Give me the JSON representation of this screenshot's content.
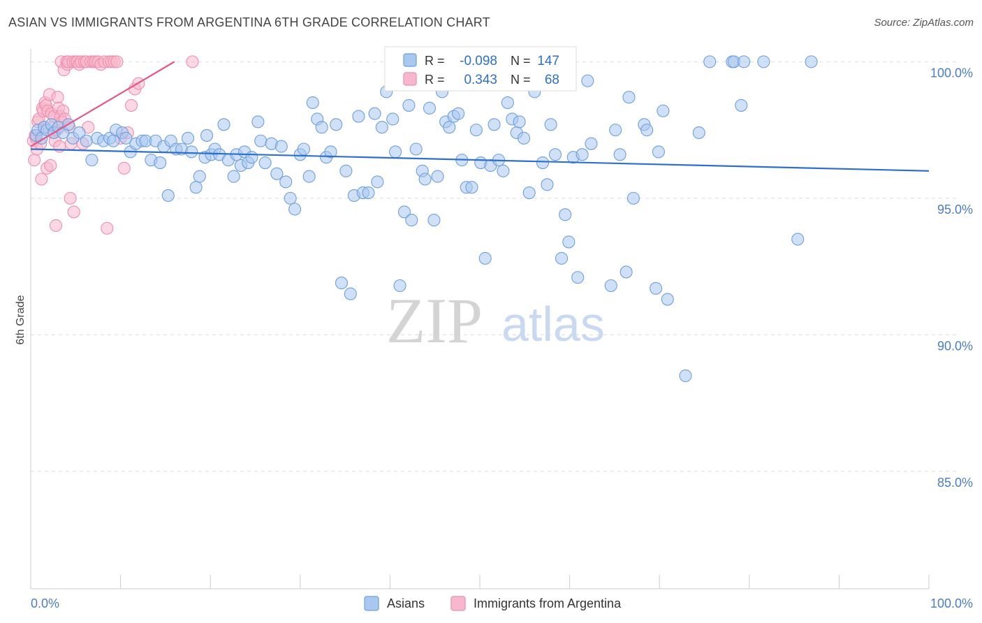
{
  "title": "ASIAN VS IMMIGRANTS FROM ARGENTINA 6TH GRADE CORRELATION CHART",
  "source": "Source: ZipAtlas.com",
  "watermark": {
    "zip": "ZIP",
    "atlas": "atlas"
  },
  "colors": {
    "asians_fill": "#a9c8f0",
    "asians_stroke": "#6e9fdc",
    "asians_line": "#2e6fcc",
    "argentina_fill": "#f7b8cc",
    "argentina_stroke": "#ee8eae",
    "argentina_line": "#e5578a",
    "axis_text": "#4a7cc9",
    "grid": "#dddddd"
  },
  "legend_box": {
    "row1": {
      "r_label": "R =",
      "r_value": "-0.098",
      "n_label": "N =",
      "n_value": "147"
    },
    "row2": {
      "r_label": "R =",
      "r_value": "0.343",
      "n_label": "N =",
      "n_value": "68"
    }
  },
  "chart_data": {
    "type": "scatter",
    "title": "ASIAN VS IMMIGRANTS FROM ARGENTINA 6TH GRADE CORRELATION CHART",
    "xlabel": "",
    "ylabel": "6th Grade",
    "xlim": [
      0,
      100
    ],
    "ylim": [
      80.7,
      100.7
    ],
    "x_tick_labels": [
      "0.0%",
      "100.0%"
    ],
    "y_ticks": [
      85,
      90,
      95,
      100
    ],
    "y_tick_labels": [
      "85.0%",
      "90.0%",
      "95.0%",
      "100.0%"
    ],
    "grid": true,
    "legend_position": "bottom",
    "series": [
      {
        "name": "Asians",
        "trend": {
          "x": [
            0,
            100
          ],
          "y": [
            96.8,
            96.0
          ]
        },
        "points": [
          [
            0.6,
            97.3
          ],
          [
            0.8,
            97.5
          ],
          [
            1.2,
            97.2
          ],
          [
            1.5,
            97.6
          ],
          [
            1.8,
            97.5
          ],
          [
            2.3,
            97.7
          ],
          [
            2.6,
            97.4
          ],
          [
            3.1,
            97.6
          ],
          [
            3.6,
            97.4
          ],
          [
            4.2,
            97.7
          ],
          [
            4.7,
            97.2
          ],
          [
            5.4,
            97.4
          ],
          [
            6.2,
            97.1
          ],
          [
            6.8,
            96.4
          ],
          [
            7.4,
            97.2
          ],
          [
            8.1,
            97.1
          ],
          [
            8.8,
            97.2
          ],
          [
            9.2,
            97.1
          ],
          [
            9.5,
            97.5
          ],
          [
            10.2,
            97.4
          ],
          [
            10.6,
            97.2
          ],
          [
            11.1,
            96.7
          ],
          [
            11.7,
            97.0
          ],
          [
            12.4,
            97.1
          ],
          [
            12.8,
            97.1
          ],
          [
            13.4,
            96.4
          ],
          [
            13.9,
            97.1
          ],
          [
            14.4,
            96.3
          ],
          [
            14.8,
            96.9
          ],
          [
            15.3,
            95.1
          ],
          [
            15.6,
            97.1
          ],
          [
            16.2,
            96.8
          ],
          [
            16.8,
            96.8
          ],
          [
            17.5,
            97.2
          ],
          [
            17.9,
            96.7
          ],
          [
            18.4,
            95.4
          ],
          [
            18.8,
            95.8
          ],
          [
            19.4,
            96.5
          ],
          [
            19.6,
            97.3
          ],
          [
            20.1,
            96.6
          ],
          [
            20.5,
            96.8
          ],
          [
            21.0,
            96.6
          ],
          [
            21.5,
            97.7
          ],
          [
            22.0,
            96.4
          ],
          [
            22.6,
            95.8
          ],
          [
            22.9,
            96.6
          ],
          [
            23.4,
            96.2
          ],
          [
            23.8,
            96.7
          ],
          [
            24.2,
            96.3
          ],
          [
            24.6,
            96.5
          ],
          [
            25.3,
            97.8
          ],
          [
            25.6,
            97.1
          ],
          [
            26.1,
            96.3
          ],
          [
            26.8,
            97.0
          ],
          [
            27.4,
            95.9
          ],
          [
            27.9,
            96.9
          ],
          [
            28.4,
            95.6
          ],
          [
            28.9,
            95.0
          ],
          [
            29.4,
            94.6
          ],
          [
            30.0,
            96.6
          ],
          [
            30.4,
            96.8
          ],
          [
            31.0,
            95.8
          ],
          [
            31.4,
            98.5
          ],
          [
            31.9,
            97.9
          ],
          [
            32.4,
            97.6
          ],
          [
            32.9,
            96.5
          ],
          [
            33.4,
            96.7
          ],
          [
            34.0,
            97.7
          ],
          [
            34.6,
            91.9
          ],
          [
            35.1,
            96.0
          ],
          [
            35.6,
            91.5
          ],
          [
            36.0,
            95.1
          ],
          [
            36.5,
            98.0
          ],
          [
            37.0,
            95.2
          ],
          [
            37.6,
            95.2
          ],
          [
            38.3,
            98.1
          ],
          [
            38.6,
            95.6
          ],
          [
            39.1,
            97.6
          ],
          [
            39.6,
            98.9
          ],
          [
            40.3,
            97.9
          ],
          [
            40.6,
            96.7
          ],
          [
            41.1,
            91.8
          ],
          [
            41.6,
            94.5
          ],
          [
            42.1,
            98.4
          ],
          [
            42.4,
            94.2
          ],
          [
            42.9,
            96.8
          ],
          [
            43.6,
            96.0
          ],
          [
            43.9,
            95.7
          ],
          [
            44.4,
            98.3
          ],
          [
            44.9,
            94.2
          ],
          [
            45.3,
            95.8
          ],
          [
            45.8,
            98.9
          ],
          [
            46.2,
            97.8
          ],
          [
            46.6,
            97.6
          ],
          [
            47.1,
            98.0
          ],
          [
            47.6,
            98.1
          ],
          [
            48.0,
            96.4
          ],
          [
            48.5,
            95.4
          ],
          [
            49.1,
            95.4
          ],
          [
            49.6,
            97.5
          ],
          [
            50.1,
            96.3
          ],
          [
            50.6,
            92.8
          ],
          [
            51.2,
            96.2
          ],
          [
            51.6,
            97.7
          ],
          [
            52.1,
            96.4
          ],
          [
            52.6,
            96.0
          ],
          [
            53.1,
            98.5
          ],
          [
            53.6,
            97.9
          ],
          [
            54.1,
            97.4
          ],
          [
            54.4,
            97.8
          ],
          [
            54.9,
            97.2
          ],
          [
            55.5,
            95.2
          ],
          [
            56.1,
            98.9
          ],
          [
            57.0,
            96.3
          ],
          [
            57.5,
            95.5
          ],
          [
            57.9,
            97.7
          ],
          [
            58.4,
            96.6
          ],
          [
            59.1,
            92.8
          ],
          [
            59.5,
            94.4
          ],
          [
            59.9,
            93.4
          ],
          [
            60.4,
            96.5
          ],
          [
            60.9,
            92.1
          ],
          [
            61.4,
            96.6
          ],
          [
            62.0,
            99.3
          ],
          [
            62.4,
            97.0
          ],
          [
            64.6,
            91.8
          ],
          [
            65.1,
            97.5
          ],
          [
            65.6,
            96.6
          ],
          [
            66.3,
            92.3
          ],
          [
            66.6,
            98.7
          ],
          [
            67.1,
            95.0
          ],
          [
            68.3,
            97.7
          ],
          [
            68.6,
            97.5
          ],
          [
            69.6,
            91.7
          ],
          [
            69.9,
            96.7
          ],
          [
            70.4,
            98.2
          ],
          [
            70.9,
            91.3
          ],
          [
            72.9,
            88.5
          ],
          [
            74.4,
            97.4
          ],
          [
            75.6,
            100.0
          ],
          [
            78.1,
            100.0
          ],
          [
            78.3,
            100.0
          ],
          [
            79.1,
            98.4
          ],
          [
            79.4,
            100.0
          ],
          [
            81.6,
            100.0
          ],
          [
            85.4,
            93.5
          ],
          [
            86.9,
            100.0
          ]
        ]
      },
      {
        "name": "Immigrants from Argentina",
        "trend": {
          "x": [
            0,
            16
          ],
          "y": [
            96.9,
            100.0
          ]
        },
        "points": [
          [
            0.3,
            97.1
          ],
          [
            0.4,
            96.4
          ],
          [
            0.5,
            97.3
          ],
          [
            0.6,
            97.2
          ],
          [
            0.7,
            96.8
          ],
          [
            0.8,
            97.8
          ],
          [
            0.9,
            97.9
          ],
          [
            1.1,
            97.0
          ],
          [
            1.2,
            95.7
          ],
          [
            1.3,
            98.3
          ],
          [
            1.4,
            98.2
          ],
          [
            1.5,
            97.6
          ],
          [
            1.6,
            98.5
          ],
          [
            1.7,
            98.4
          ],
          [
            1.8,
            96.1
          ],
          [
            1.9,
            98.2
          ],
          [
            2.1,
            98.8
          ],
          [
            2.2,
            96.2
          ],
          [
            2.3,
            98.1
          ],
          [
            2.4,
            97.6
          ],
          [
            2.5,
            97.4
          ],
          [
            2.6,
            98.0
          ],
          [
            2.7,
            97.1
          ],
          [
            2.8,
            94.0
          ],
          [
            2.9,
            97.5
          ],
          [
            3.0,
            98.7
          ],
          [
            3.1,
            98.3
          ],
          [
            3.2,
            96.9
          ],
          [
            3.3,
            98.0
          ],
          [
            3.4,
            100.0
          ],
          [
            3.5,
            97.8
          ],
          [
            3.6,
            98.2
          ],
          [
            3.7,
            99.7
          ],
          [
            3.8,
            97.9
          ],
          [
            4.0,
            100.0
          ],
          [
            4.1,
            99.9
          ],
          [
            4.2,
            100.0
          ],
          [
            4.3,
            97.6
          ],
          [
            4.4,
            95.0
          ],
          [
            4.5,
            97.0
          ],
          [
            4.7,
            100.0
          ],
          [
            4.8,
            94.5
          ],
          [
            5.0,
            100.0
          ],
          [
            5.2,
            100.0
          ],
          [
            5.4,
            99.9
          ],
          [
            5.6,
            100.0
          ],
          [
            5.8,
            97.0
          ],
          [
            6.0,
            100.0
          ],
          [
            6.2,
            100.0
          ],
          [
            6.4,
            97.6
          ],
          [
            6.7,
            100.0
          ],
          [
            7.0,
            100.0
          ],
          [
            7.2,
            100.0
          ],
          [
            7.5,
            100.0
          ],
          [
            7.8,
            99.9
          ],
          [
            8.2,
            100.0
          ],
          [
            8.5,
            93.9
          ],
          [
            8.7,
            100.0
          ],
          [
            9.0,
            100.0
          ],
          [
            9.3,
            100.0
          ],
          [
            9.6,
            100.0
          ],
          [
            10.0,
            97.2
          ],
          [
            10.4,
            96.1
          ],
          [
            10.8,
            97.4
          ],
          [
            11.2,
            98.4
          ],
          [
            11.6,
            99.0
          ],
          [
            12.0,
            99.2
          ],
          [
            18.0,
            100.0
          ]
        ]
      }
    ]
  }
}
